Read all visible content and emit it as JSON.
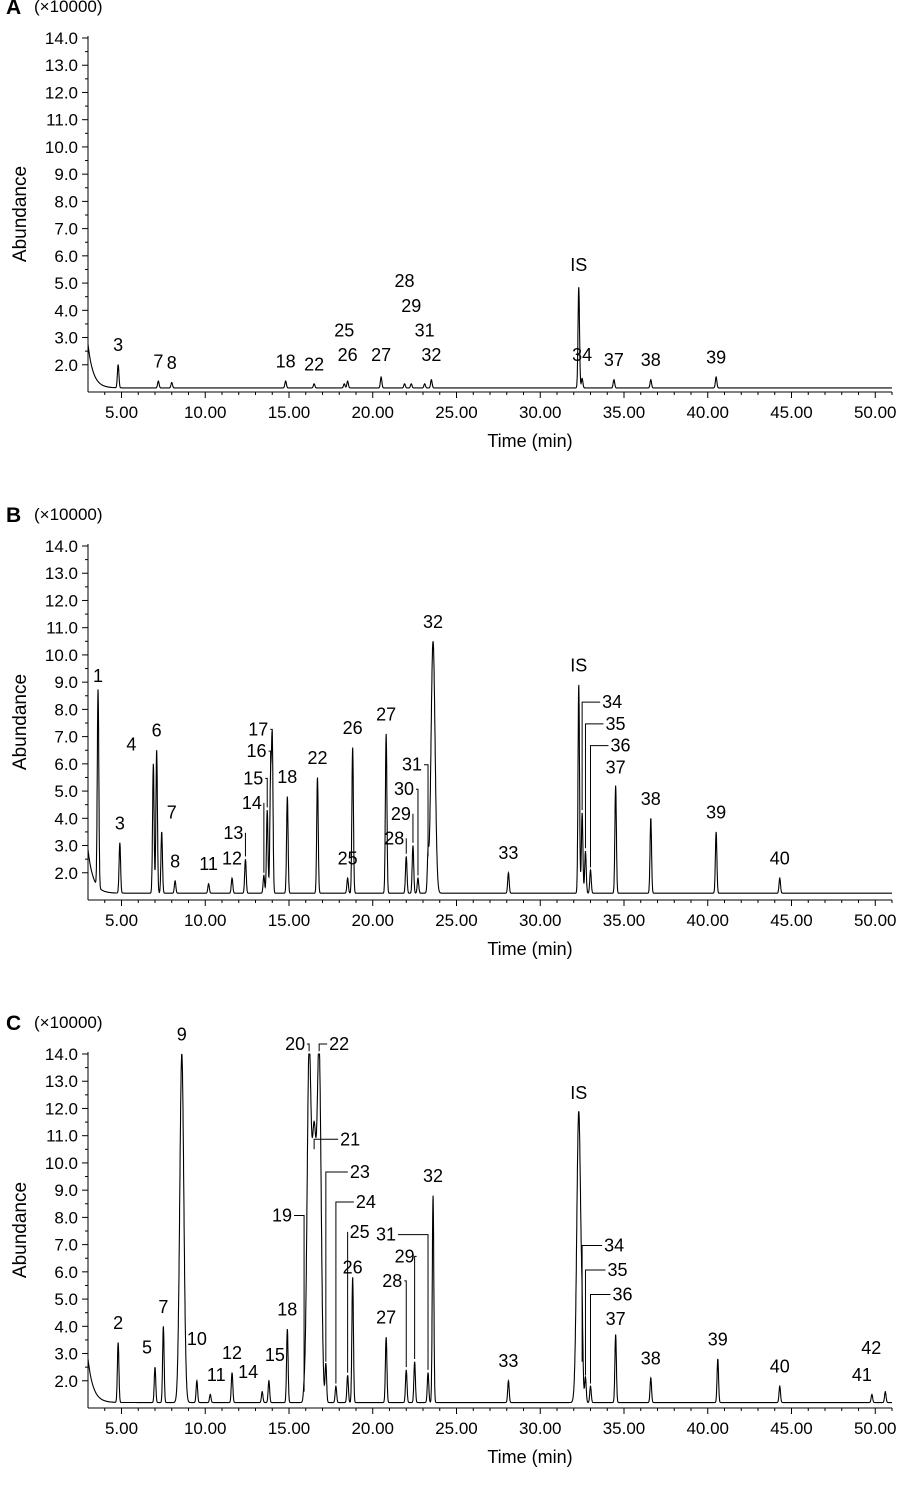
{
  "chart_data": [
    {
      "type": "line",
      "panel_label": "A",
      "scale_label": "(×10000)",
      "xlabel": "Time (min)",
      "ylabel": "Abundance",
      "xlim": [
        3.0,
        51.0
      ],
      "ylim": [
        1.0,
        14.0
      ],
      "x_ticks": [
        "5.00",
        "10.00",
        "15.00",
        "20.00",
        "25.00",
        "30.00",
        "35.00",
        "40.00",
        "45.00",
        "50.00"
      ],
      "y_ticks": [
        "2.0",
        "3.0",
        "4.0",
        "5.0",
        "6.0",
        "7.0",
        "8.0",
        "9.0",
        "10.0",
        "11.0",
        "12.0",
        "13.0",
        "14.0"
      ],
      "baseline": 1.15,
      "peaks": [
        {
          "label": "3",
          "x": 4.8,
          "y": 2.0
        },
        {
          "label": "7",
          "x": 7.2,
          "y": 1.4
        },
        {
          "label": "8",
          "x": 8.0,
          "y": 1.35
        },
        {
          "label": "18",
          "x": 14.8,
          "y": 1.4
        },
        {
          "label": "22",
          "x": 16.5,
          "y": 1.3
        },
        {
          "label": "25",
          "x": 18.3,
          "y": 1.3
        },
        {
          "label": "26",
          "x": 18.5,
          "y": 1.4
        },
        {
          "label": "27",
          "x": 20.5,
          "y": 1.55
        },
        {
          "label": "28",
          "x": 21.9,
          "y": 1.3
        },
        {
          "label": "29",
          "x": 22.3,
          "y": 1.3
        },
        {
          "label": "31",
          "x": 23.1,
          "y": 1.3
        },
        {
          "label": "32",
          "x": 23.5,
          "y": 1.45
        },
        {
          "label": "IS",
          "x": 32.3,
          "y": 4.85
        },
        {
          "label": "34",
          "x": 32.5,
          "y": 1.5
        },
        {
          "label": "37",
          "x": 34.4,
          "y": 1.45
        },
        {
          "label": "38",
          "x": 36.6,
          "y": 1.45
        },
        {
          "label": "39",
          "x": 40.5,
          "y": 1.55
        }
      ]
    },
    {
      "type": "line",
      "panel_label": "B",
      "scale_label": "(×10000)",
      "xlabel": "Time (min)",
      "ylabel": "Abundance",
      "xlim": [
        3.0,
        51.0
      ],
      "ylim": [
        1.0,
        14.0
      ],
      "x_ticks": [
        "5.00",
        "10.00",
        "15.00",
        "20.00",
        "25.00",
        "30.00",
        "35.00",
        "40.00",
        "45.00",
        "50.00"
      ],
      "y_ticks": [
        "2.0",
        "3.0",
        "4.0",
        "5.0",
        "6.0",
        "7.0",
        "8.0",
        "9.0",
        "10.0",
        "11.0",
        "12.0",
        "13.0",
        "14.0"
      ],
      "baseline": 1.25,
      "peaks": [
        {
          "label": "1",
          "x": 3.6,
          "y": 8.5
        },
        {
          "label": "3",
          "x": 4.9,
          "y": 3.1
        },
        {
          "label": "4",
          "x": 6.9,
          "y": 6.0
        },
        {
          "label": "6",
          "x": 7.1,
          "y": 6.5
        },
        {
          "label": "7",
          "x": 7.4,
          "y": 3.5
        },
        {
          "label": "8",
          "x": 8.2,
          "y": 1.7
        },
        {
          "label": "11",
          "x": 10.2,
          "y": 1.6
        },
        {
          "label": "12",
          "x": 11.6,
          "y": 1.8
        },
        {
          "label": "13",
          "x": 12.4,
          "y": 2.5
        },
        {
          "label": "14",
          "x": 13.5,
          "y": 1.9
        },
        {
          "label": "15",
          "x": 13.7,
          "y": 4.3
        },
        {
          "label": "16",
          "x": 13.9,
          "y": 5.3
        },
        {
          "label": "17",
          "x": 14.0,
          "y": 6.8
        },
        {
          "label": "18",
          "x": 14.9,
          "y": 4.8
        },
        {
          "label": "22",
          "x": 16.7,
          "y": 5.5
        },
        {
          "label": "25",
          "x": 18.5,
          "y": 1.8
        },
        {
          "label": "26",
          "x": 18.8,
          "y": 6.6
        },
        {
          "label": "27",
          "x": 20.8,
          "y": 7.1
        },
        {
          "label": "28",
          "x": 22.0,
          "y": 2.6
        },
        {
          "label": "29",
          "x": 22.4,
          "y": 3.0
        },
        {
          "label": "30",
          "x": 22.7,
          "y": 1.8
        },
        {
          "label": "31",
          "x": 23.3,
          "y": 2.5
        },
        {
          "label": "32",
          "x": 23.6,
          "y": 10.5
        },
        {
          "label": "33",
          "x": 28.1,
          "y": 2.0
        },
        {
          "label": "IS",
          "x": 32.3,
          "y": 8.9
        },
        {
          "label": "34",
          "x": 32.5,
          "y": 4.2
        },
        {
          "label": "35",
          "x": 32.7,
          "y": 2.8
        },
        {
          "label": "36",
          "x": 33.0,
          "y": 2.1
        },
        {
          "label": "37",
          "x": 34.5,
          "y": 5.2
        },
        {
          "label": "38",
          "x": 36.6,
          "y": 4.0
        },
        {
          "label": "39",
          "x": 40.5,
          "y": 3.5
        },
        {
          "label": "40",
          "x": 44.3,
          "y": 1.8
        }
      ]
    },
    {
      "type": "line",
      "panel_label": "C",
      "scale_label": "(×10000)",
      "xlabel": "Time (min)",
      "ylabel": "Abundance",
      "xlim": [
        3.0,
        51.0
      ],
      "ylim": [
        1.0,
        14.0
      ],
      "x_ticks": [
        "5.00",
        "10.00",
        "15.00",
        "20.00",
        "25.00",
        "30.00",
        "35.00",
        "40.00",
        "45.00",
        "50.00"
      ],
      "y_ticks": [
        "2.0",
        "3.0",
        "4.0",
        "5.0",
        "6.0",
        "7.0",
        "8.0",
        "9.0",
        "10.0",
        "11.0",
        "12.0",
        "13.0",
        "14.0"
      ],
      "baseline": 1.2,
      "peaks": [
        {
          "label": "2",
          "x": 4.8,
          "y": 3.4
        },
        {
          "label": "5",
          "x": 7.0,
          "y": 2.5
        },
        {
          "label": "7",
          "x": 7.5,
          "y": 4.0
        },
        {
          "label": "9",
          "x": 8.6,
          "y": 14.0
        },
        {
          "label": "10",
          "x": 9.5,
          "y": 2.0
        },
        {
          "label": "11",
          "x": 10.3,
          "y": 1.5
        },
        {
          "label": "12",
          "x": 11.6,
          "y": 2.3
        },
        {
          "label": "14",
          "x": 13.4,
          "y": 1.6
        },
        {
          "label": "15",
          "x": 13.8,
          "y": 2.0
        },
        {
          "label": "18",
          "x": 14.9,
          "y": 3.9
        },
        {
          "label": "19",
          "x": 15.9,
          "y": 1.5
        },
        {
          "label": "20",
          "x": 16.2,
          "y": 14.0
        },
        {
          "label": "21",
          "x": 16.5,
          "y": 10.4
        },
        {
          "label": "22",
          "x": 16.8,
          "y": 14.0
        },
        {
          "label": "23",
          "x": 17.2,
          "y": 2.6
        },
        {
          "label": "24",
          "x": 17.8,
          "y": 1.8
        },
        {
          "label": "25",
          "x": 18.5,
          "y": 2.2
        },
        {
          "label": "26",
          "x": 18.8,
          "y": 5.8
        },
        {
          "label": "27",
          "x": 20.8,
          "y": 3.6
        },
        {
          "label": "28",
          "x": 22.0,
          "y": 2.4
        },
        {
          "label": "29",
          "x": 22.5,
          "y": 2.7
        },
        {
          "label": "31",
          "x": 23.3,
          "y": 2.3
        },
        {
          "label": "32",
          "x": 23.6,
          "y": 8.8
        },
        {
          "label": "33",
          "x": 28.1,
          "y": 2.0
        },
        {
          "label": "IS",
          "x": 32.3,
          "y": 11.9
        },
        {
          "label": "34",
          "x": 32.5,
          "y": 2.6
        },
        {
          "label": "35",
          "x": 32.7,
          "y": 2.1
        },
        {
          "label": "36",
          "x": 33.0,
          "y": 1.8
        },
        {
          "label": "37",
          "x": 34.5,
          "y": 3.7
        },
        {
          "label": "38",
          "x": 36.6,
          "y": 2.1
        },
        {
          "label": "39",
          "x": 40.6,
          "y": 2.8
        },
        {
          "label": "40",
          "x": 44.3,
          "y": 1.8
        },
        {
          "label": "41",
          "x": 49.8,
          "y": 1.5
        },
        {
          "label": "42",
          "x": 50.6,
          "y": 1.6
        }
      ]
    }
  ]
}
